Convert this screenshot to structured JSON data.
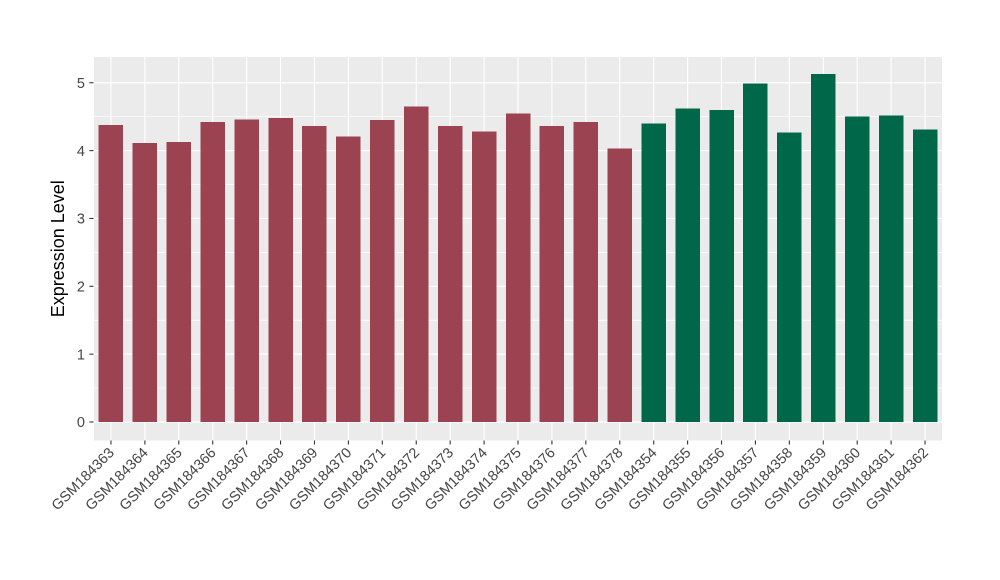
{
  "chart_data": {
    "type": "bar",
    "title": "",
    "xlabel": "",
    "ylabel": "Expression Level",
    "categories": [
      "GSM184363",
      "GSM184364",
      "GSM184365",
      "GSM184366",
      "GSM184367",
      "GSM184368",
      "GSM184369",
      "GSM184370",
      "GSM184371",
      "GSM184372",
      "GSM184373",
      "GSM184374",
      "GSM184375",
      "GSM184376",
      "GSM184377",
      "GSM184378",
      "GSM184354",
      "GSM184355",
      "GSM184356",
      "GSM184357",
      "GSM184358",
      "GSM184359",
      "GSM184360",
      "GSM184361",
      "GSM184362"
    ],
    "values": [
      4.38,
      4.11,
      4.13,
      4.42,
      4.46,
      4.48,
      4.36,
      4.21,
      4.45,
      4.65,
      4.36,
      4.28,
      4.55,
      4.36,
      4.42,
      4.03,
      4.4,
      4.62,
      4.6,
      4.99,
      4.27,
      5.13,
      4.5,
      4.52,
      4.31
    ],
    "series": [
      {
        "name": "GSM184363-GSM184378",
        "color": "#9C4351",
        "count": 16
      },
      {
        "name": "GSM184354-GSM184362",
        "color": "#006849",
        "count": 9
      }
    ],
    "yticks": [
      0,
      1,
      2,
      3,
      4,
      5
    ],
    "yticks_minor": [
      0.5,
      1.5,
      2.5,
      3.5,
      4.5
    ],
    "ylim": [
      0,
      5.39
    ],
    "grid": true,
    "legend": false,
    "x_label_angle": 45,
    "style": {
      "panel_bg": "#EBEBEB",
      "grid_color": "#FFFFFF",
      "tick_mark_color": "#333333",
      "tick_label_color": "#454545",
      "axis_title_color": "#000000"
    }
  }
}
